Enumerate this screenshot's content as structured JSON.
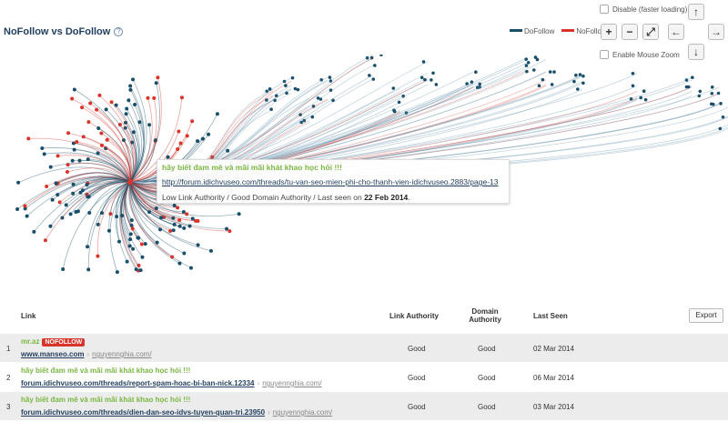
{
  "header": {
    "title": "NoFollow vs DoFollow",
    "help_icon": "?"
  },
  "legend": {
    "dofollow": "DoFollow",
    "nofollow": "NoFollow",
    "dofollow_color": "#1a4f6b",
    "nofollow_color": "#d9342b"
  },
  "options": {
    "disable_label": "Disable (faster loading)",
    "mouse_zoom_label": "Enable Mouse Zoom"
  },
  "controls": {
    "up": "↑",
    "down": "↓",
    "left": "←",
    "right": "→",
    "zoom_in": "+",
    "zoom_out": "−",
    "fullscreen": "⤢"
  },
  "tooltip": {
    "title": "hãy biết đam mê và mãi mãi khát khao học hỏi !!!",
    "url": "http://forum.idichvuseo.com/threads/tu-van-seo-mien-phi-cho-thanh-vien-idichvuseo.2883/page-13",
    "meta_prefix": "Low Link Authority / Good Domain Authority / Last seen on ",
    "meta_date": "22 Feb 2014",
    "meta_suffix": "."
  },
  "table": {
    "headers": {
      "link": "Link",
      "link_authority": "Link Authority",
      "domain_authority_1": "Domain",
      "domain_authority_2": "Authority",
      "last_seen": "Last Seen"
    },
    "export_label": "Export",
    "rows": [
      {
        "num": "1",
        "title": "mr.az",
        "badge": "NOFOLLOW",
        "url": "www.manseo.com",
        "domain": "nguyennghia.com/",
        "link_authority": "Good",
        "domain_authority": "Good",
        "last_seen": "02 Mar 2014"
      },
      {
        "num": "2",
        "title": "hãy biết đam mê và mãi mãi khát khao học hỏi !!!",
        "badge": "",
        "url": "forum.idichvuseo.com/threads/report-spam-hoac-bi-ban-nick.12334",
        "domain": "nguyennghia.com/",
        "link_authority": "Good",
        "domain_authority": "Good",
        "last_seen": "06 Mar 2014"
      },
      {
        "num": "3",
        "title": "hãy biết đam mê và mãi mãi khát khao học hỏi !!!",
        "badge": "",
        "url": "forum.idichvuseo.com/threads/dien-dan-seo-idvs-tuyen-quan-tri.23950",
        "domain": "nguyennghia.com/",
        "link_authority": "Good",
        "domain_authority": "Good",
        "last_seen": "03 Mar 2014"
      }
    ]
  }
}
